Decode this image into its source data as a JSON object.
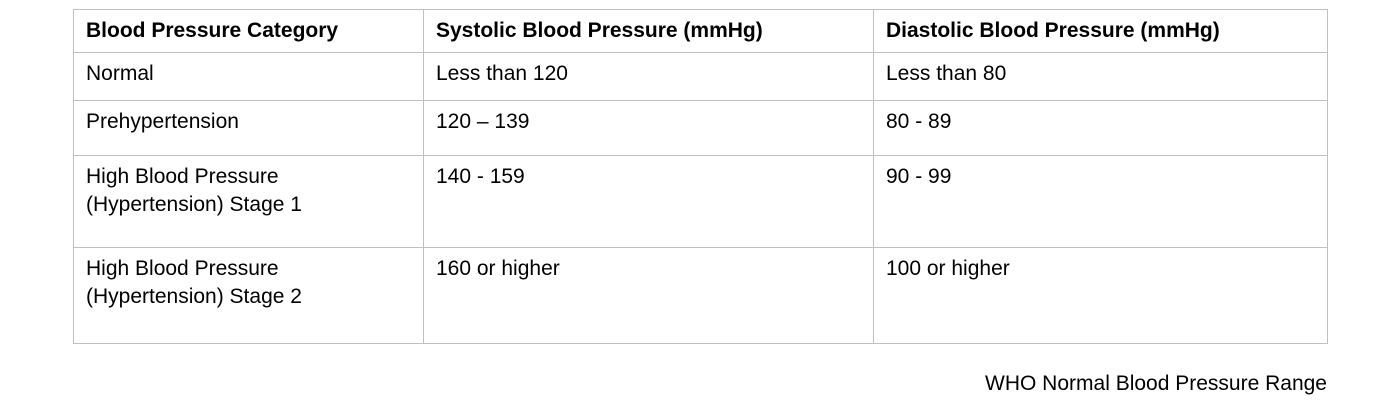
{
  "page": {
    "background_color": "#ffffff",
    "text_color": "#000000",
    "table_border_color": "#c0c0c0"
  },
  "table": {
    "columns": [
      "Blood Pressure Category",
      "Systolic Blood Pressure (mmHg)",
      "Diastolic Blood Pressure (mmHg)"
    ],
    "rows": [
      {
        "category": "Normal",
        "systolic": "Less than 120",
        "diastolic": "Less than 80"
      },
      {
        "category": "Prehypertension",
        "systolic": "120 – 139",
        "diastolic": "80 - 89"
      },
      {
        "category": "High Blood Pressure (Hypertension) Stage 1",
        "systolic": "140 - 159",
        "diastolic": "90 - 99"
      },
      {
        "category": "High Blood Pressure (Hypertension) Stage 2",
        "systolic": "160 or higher",
        "diastolic": "100 or higher"
      }
    ]
  },
  "caption": {
    "text": "WHO Normal Blood Pressure Range"
  }
}
